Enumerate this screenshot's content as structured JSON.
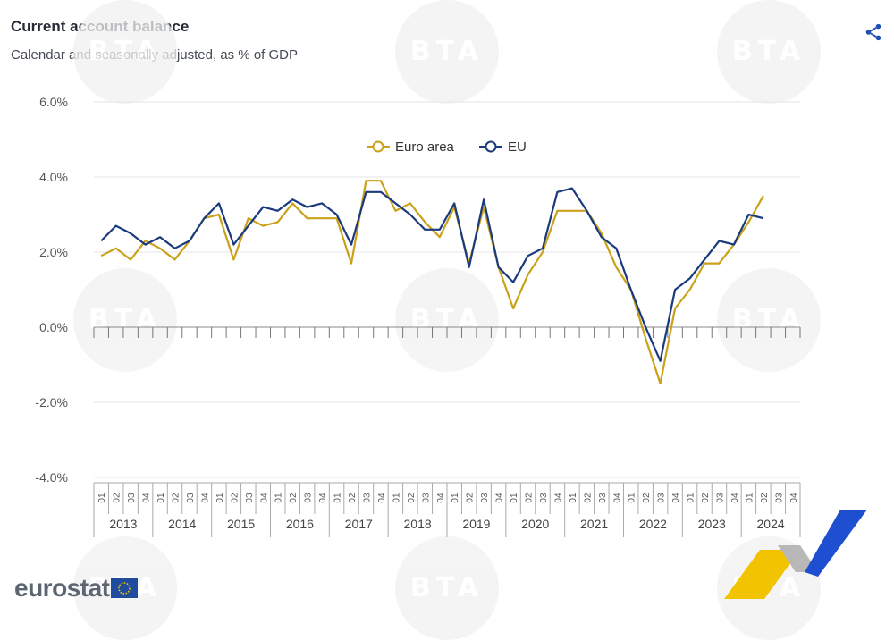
{
  "header": {
    "title": "Current account balance",
    "subtitle": "Calendar and seasonally adjusted, as % of GDP",
    "share_icon": "share-icon"
  },
  "branding": {
    "logo_text": "eurostat",
    "watermark_text": "BTA"
  },
  "colors": {
    "euro_area": "#c9a21a",
    "eu": "#1a3a7e",
    "grid": "#e6e6e6",
    "axis": "#888888",
    "share": "#1b4fb5"
  },
  "chart_data": {
    "type": "line",
    "title": "Current account balance",
    "subtitle": "Calendar and seasonally adjusted, as % of GDP",
    "xlabel": "",
    "ylabel": "",
    "ylim": [
      -4,
      6
    ],
    "yticks": [
      "6.0%",
      "4.0%",
      "2.0%",
      "0.0%",
      "-2.0%",
      "-4.0%"
    ],
    "ytick_values": [
      6,
      4,
      2,
      0,
      -2,
      -4
    ],
    "quarters": [
      "Q1",
      "Q2",
      "Q3",
      "Q4"
    ],
    "years": [
      "2013",
      "2014",
      "2015",
      "2016",
      "2017",
      "2018",
      "2019",
      "2020",
      "2021",
      "2022",
      "2023",
      "2024"
    ],
    "legend_position": "top-center",
    "series": [
      {
        "name": "Euro area",
        "values": [
          1.9,
          2.1,
          1.8,
          2.3,
          2.1,
          1.8,
          2.3,
          2.9,
          3.0,
          1.8,
          2.9,
          2.7,
          2.8,
          3.3,
          2.9,
          2.9,
          2.9,
          1.7,
          3.9,
          3.9,
          3.1,
          3.3,
          2.8,
          2.4,
          3.2,
          1.7,
          3.2,
          1.6,
          0.5,
          1.4,
          2.0,
          3.1,
          3.1,
          3.1,
          2.5,
          1.6,
          1.0,
          -0.3,
          -1.5,
          0.5,
          1.0,
          1.7,
          1.7,
          2.2,
          2.8,
          3.5,
          null,
          null
        ]
      },
      {
        "name": "EU",
        "values": [
          2.3,
          2.7,
          2.5,
          2.2,
          2.4,
          2.1,
          2.3,
          2.9,
          3.3,
          2.2,
          2.7,
          3.2,
          3.1,
          3.4,
          3.2,
          3.3,
          3.0,
          2.2,
          3.6,
          3.6,
          3.3,
          3.0,
          2.6,
          2.6,
          3.3,
          1.6,
          3.4,
          1.6,
          1.2,
          1.9,
          2.1,
          3.6,
          3.7,
          3.1,
          2.4,
          2.1,
          1.0,
          0.0,
          -0.9,
          1.0,
          1.3,
          1.8,
          2.3,
          2.2,
          3.0,
          2.9,
          null,
          null
        ]
      }
    ]
  }
}
